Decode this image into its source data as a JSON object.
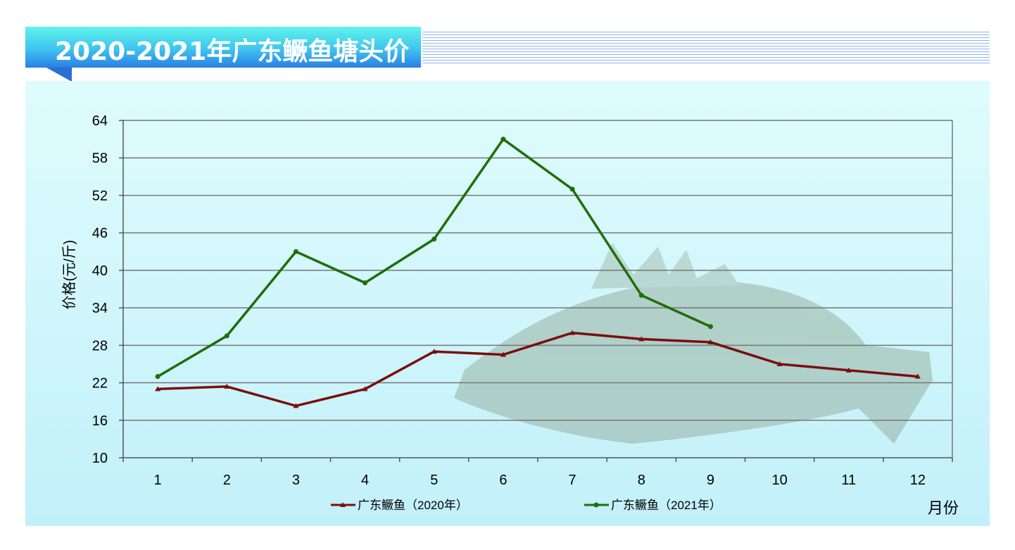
{
  "title": "2020-2021年广东鳜鱼塘头价",
  "chart_data": {
    "type": "line",
    "title": "2020-2021年广东鳜鱼塘头价",
    "xlabel": "月份",
    "ylabel": "价格(元/斤)",
    "categories": [
      "1",
      "2",
      "3",
      "4",
      "5",
      "6",
      "7",
      "8",
      "9",
      "10",
      "11",
      "12"
    ],
    "yticks": [
      10,
      16,
      22,
      28,
      34,
      40,
      46,
      52,
      58,
      64
    ],
    "ylim": [
      10,
      64
    ],
    "grid": "horizontal",
    "legend": "bottom",
    "series": [
      {
        "name": "广东鳜鱼（2020年）",
        "color": "#7a0f0f",
        "marker": "triangle",
        "values": [
          21,
          21.4,
          18.3,
          21,
          27,
          26.5,
          30,
          29,
          28.5,
          25,
          24,
          23
        ]
      },
      {
        "name": "广东鳜鱼（2021年）",
        "color": "#1f6e0a",
        "marker": "circle",
        "values": [
          23,
          29.5,
          43,
          38,
          45,
          61,
          53,
          36,
          31,
          null,
          null,
          null
        ]
      }
    ]
  }
}
